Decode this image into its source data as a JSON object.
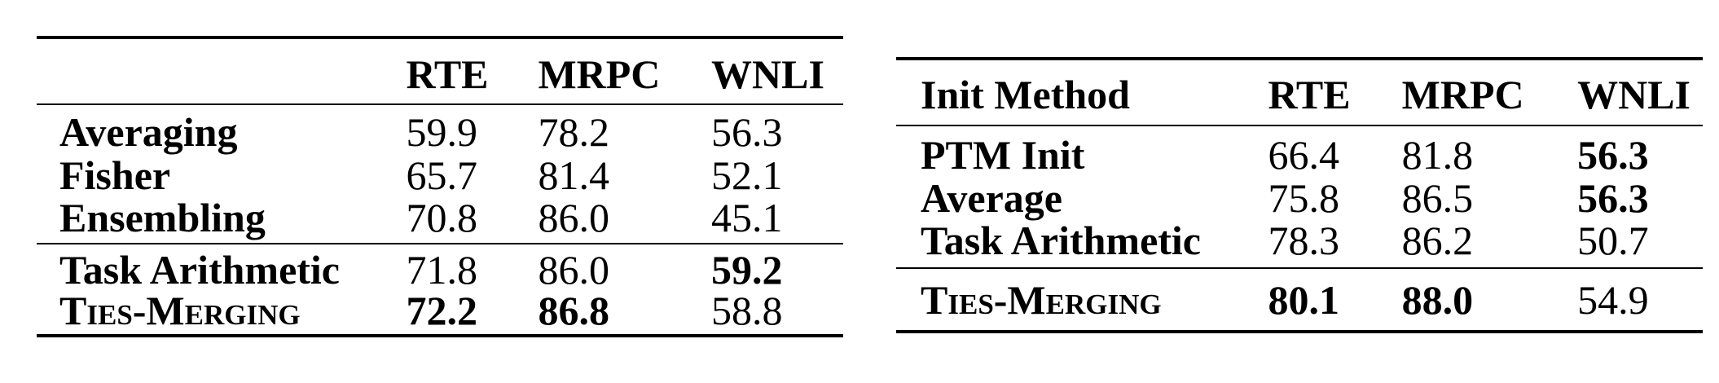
{
  "left_table": {
    "headers": [
      "",
      "RTE",
      "MRPC",
      "WNLI"
    ],
    "group1": [
      {
        "method": "Averaging",
        "rte": "59.9",
        "mrpc": "78.2",
        "wnli": "56.3"
      },
      {
        "method": "Fisher",
        "rte": "65.7",
        "mrpc": "81.4",
        "wnli": "52.1"
      },
      {
        "method": "Ensembling",
        "rte": "70.8",
        "mrpc": "86.0",
        "wnli": "45.1"
      }
    ],
    "group2": [
      {
        "method": "Task Arithmetic",
        "rte": "71.8",
        "mrpc": "86.0",
        "wnli": "59.2"
      },
      {
        "method": "Ties-Merging",
        "rte": "72.2",
        "mrpc": "86.8",
        "wnli": "58.8"
      }
    ]
  },
  "right_table": {
    "headers": [
      "Init Method",
      "RTE",
      "MRPC",
      "WNLI"
    ],
    "group1": [
      {
        "method": "PTM Init",
        "rte": "66.4",
        "mrpc": "81.8",
        "wnli": "56.3"
      },
      {
        "method": "Average",
        "rte": "75.8",
        "mrpc": "86.5",
        "wnli": "56.3"
      },
      {
        "method": "Task Arithmetic",
        "rte": "78.3",
        "mrpc": "86.2",
        "wnli": "50.7"
      }
    ],
    "group2": [
      {
        "method": "Ties-Merging",
        "rte": "80.1",
        "mrpc": "88.0",
        "wnli": "54.9"
      }
    ]
  }
}
